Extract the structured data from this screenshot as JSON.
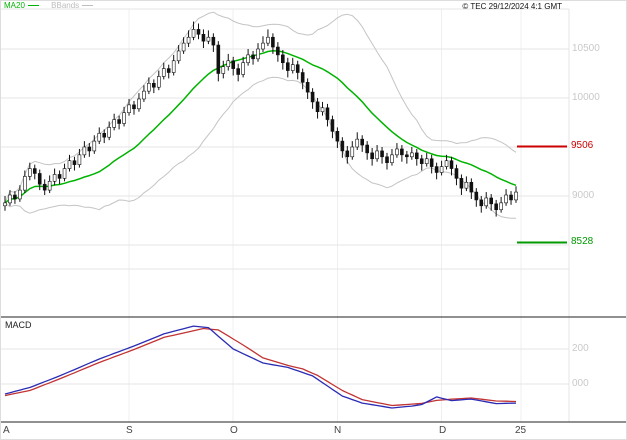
{
  "header": {
    "legend": [
      {
        "label": "MA20",
        "color": "#00b300"
      },
      {
        "label": "BBands",
        "color": "#bdbdbd"
      }
    ],
    "copyright": "© TEC 29/12/2024 4:1 GMT"
  },
  "chart_data": {
    "type": "candlestick",
    "title": "",
    "colors": {
      "candle": "#111111",
      "grid": "#e4e4e4",
      "axis": "#222222",
      "axis_label_gray": "#c9c9c9"
    },
    "y_axis": {
      "range": [
        8200,
        10900
      ],
      "ticks": [
        {
          "label": "10500",
          "value": 10500
        },
        {
          "label": "10000",
          "value": 10000
        },
        {
          "label": "9500",
          "value": 9500
        },
        {
          "label": "9000",
          "value": 9000
        },
        {
          "label": "8500",
          "value": 8500
        }
      ]
    },
    "x_axis": {
      "ticks": [
        {
          "label": "A",
          "i": 0,
          "grid": false
        },
        {
          "label": "S",
          "i": 25,
          "grid": true
        },
        {
          "label": "O",
          "i": 46,
          "grid": true
        },
        {
          "label": "N",
          "i": 67,
          "grid": true
        },
        {
          "label": "D",
          "i": 88,
          "grid": true
        },
        {
          "label": "25",
          "i": 104,
          "grid": true
        }
      ]
    },
    "levels": [
      {
        "label": "9506",
        "value": 9506,
        "color": "#cc0000"
      },
      {
        "label": "8528",
        "value": 8528,
        "color": "#009900"
      }
    ],
    "candles": [
      [
        8900,
        9000,
        8850,
        8930
      ],
      [
        8930,
        9060,
        8900,
        9010
      ],
      [
        9010,
        9050,
        8920,
        8970
      ],
      [
        8970,
        9110,
        8940,
        9060
      ],
      [
        9060,
        9260,
        9030,
        9200
      ],
      [
        9200,
        9340,
        9160,
        9280
      ],
      [
        9280,
        9320,
        9170,
        9230
      ],
      [
        9230,
        9270,
        9060,
        9120
      ],
      [
        9120,
        9170,
        9010,
        9060
      ],
      [
        9060,
        9210,
        9030,
        9150
      ],
      [
        9150,
        9280,
        9110,
        9220
      ],
      [
        9220,
        9260,
        9120,
        9180
      ],
      [
        9180,
        9330,
        9150,
        9280
      ],
      [
        9280,
        9420,
        9250,
        9360
      ],
      [
        9360,
        9400,
        9260,
        9320
      ],
      [
        9320,
        9480,
        9290,
        9420
      ],
      [
        9420,
        9560,
        9390,
        9500
      ],
      [
        9500,
        9540,
        9400,
        9460
      ],
      [
        9460,
        9620,
        9430,
        9560
      ],
      [
        9560,
        9700,
        9530,
        9640
      ],
      [
        9640,
        9680,
        9540,
        9600
      ],
      [
        9600,
        9760,
        9570,
        9700
      ],
      [
        9700,
        9840,
        9670,
        9780
      ],
      [
        9780,
        9820,
        9680,
        9740
      ],
      [
        9740,
        9910,
        9710,
        9850
      ],
      [
        9850,
        9990,
        9820,
        9930
      ],
      [
        9930,
        9970,
        9830,
        9890
      ],
      [
        9890,
        10050,
        9860,
        9990
      ],
      [
        9990,
        10130,
        9960,
        10070
      ],
      [
        10070,
        10210,
        10040,
        10150
      ],
      [
        10150,
        10190,
        10050,
        10110
      ],
      [
        10110,
        10280,
        10080,
        10220
      ],
      [
        10220,
        10360,
        10190,
        10300
      ],
      [
        10300,
        10340,
        10200,
        10260
      ],
      [
        10260,
        10440,
        10230,
        10380
      ],
      [
        10380,
        10540,
        10350,
        10480
      ],
      [
        10480,
        10620,
        10450,
        10560
      ],
      [
        10560,
        10690,
        10520,
        10620
      ],
      [
        10620,
        10780,
        10590,
        10700
      ],
      [
        10700,
        10760,
        10600,
        10650
      ],
      [
        10650,
        10700,
        10510,
        10580
      ],
      [
        10580,
        10690,
        10550,
        10620
      ],
      [
        10620,
        10660,
        10470,
        10540
      ],
      [
        10540,
        10580,
        10170,
        10250
      ],
      [
        10250,
        10380,
        10200,
        10320
      ],
      [
        10320,
        10450,
        10280,
        10380
      ],
      [
        10380,
        10420,
        10230,
        10300
      ],
      [
        10300,
        10350,
        10170,
        10240
      ],
      [
        10240,
        10420,
        10210,
        10360
      ],
      [
        10360,
        10500,
        10330,
        10440
      ],
      [
        10440,
        10480,
        10340,
        10400
      ],
      [
        10400,
        10560,
        10370,
        10500
      ],
      [
        10500,
        10630,
        10470,
        10560
      ],
      [
        10560,
        10700,
        10530,
        10620
      ],
      [
        10620,
        10660,
        10450,
        10520
      ],
      [
        10520,
        10570,
        10370,
        10440
      ],
      [
        10440,
        10490,
        10290,
        10360
      ],
      [
        10360,
        10410,
        10210,
        10280
      ],
      [
        10280,
        10410,
        10250,
        10340
      ],
      [
        10340,
        10380,
        10190,
        10260
      ],
      [
        10260,
        10300,
        10090,
        10160
      ],
      [
        10160,
        10200,
        9990,
        10060
      ],
      [
        10060,
        10100,
        9890,
        9960
      ],
      [
        9960,
        10000,
        9790,
        9860
      ],
      [
        9860,
        9960,
        9820,
        9900
      ],
      [
        9900,
        9940,
        9710,
        9780
      ],
      [
        9780,
        9820,
        9590,
        9660
      ],
      [
        9660,
        9700,
        9490,
        9560
      ],
      [
        9560,
        9600,
        9390,
        9460
      ],
      [
        9460,
        9510,
        9330,
        9400
      ],
      [
        9400,
        9560,
        9370,
        9500
      ],
      [
        9500,
        9650,
        9470,
        9580
      ],
      [
        9580,
        9620,
        9450,
        9520
      ],
      [
        9520,
        9560,
        9370,
        9440
      ],
      [
        9440,
        9490,
        9310,
        9380
      ],
      [
        9380,
        9520,
        9350,
        9460
      ],
      [
        9460,
        9500,
        9330,
        9400
      ],
      [
        9400,
        9440,
        9270,
        9340
      ],
      [
        9340,
        9480,
        9310,
        9420
      ],
      [
        9420,
        9540,
        9390,
        9480
      ],
      [
        9480,
        9520,
        9350,
        9420
      ],
      [
        9420,
        9460,
        9330,
        9400
      ],
      [
        9400,
        9500,
        9370,
        9440
      ],
      [
        9440,
        9480,
        9310,
        9380
      ],
      [
        9380,
        9420,
        9260,
        9330
      ],
      [
        9330,
        9440,
        9300,
        9380
      ],
      [
        9380,
        9420,
        9230,
        9300
      ],
      [
        9300,
        9340,
        9170,
        9240
      ],
      [
        9240,
        9360,
        9210,
        9300
      ],
      [
        9300,
        9420,
        9270,
        9360
      ],
      [
        9360,
        9400,
        9210,
        9280
      ],
      [
        9280,
        9320,
        9110,
        9180
      ],
      [
        9180,
        9220,
        9010,
        9080
      ],
      [
        9080,
        9200,
        9050,
        9140
      ],
      [
        9140,
        9180,
        8970,
        9040
      ],
      [
        9040,
        9080,
        8890,
        8960
      ],
      [
        8960,
        9000,
        8830,
        8900
      ],
      [
        8900,
        9040,
        8870,
        8980
      ],
      [
        8980,
        9020,
        8850,
        8920
      ],
      [
        8920,
        8960,
        8790,
        8860
      ],
      [
        8860,
        8990,
        8830,
        8930
      ],
      [
        8930,
        9070,
        8900,
        9010
      ],
      [
        9010,
        9050,
        8910,
        8960
      ],
      [
        8960,
        9100,
        8930,
        9040
      ]
    ],
    "indicators": {
      "ma20": {
        "period": 20,
        "color": "#00b300"
      },
      "bbands": {
        "period": 20,
        "mult": 2,
        "color": "#c4c4c4"
      },
      "macd": {
        "label": "MACD",
        "axis_ticks": [
          {
            "label": "200",
            "value": 200
          },
          {
            "label": "000",
            "value": 0
          }
        ],
        "line": {
          "color": "#2b2bb4",
          "points": [
            [
              0,
              -57
            ],
            [
              5,
              -20
            ],
            [
              11,
              46
            ],
            [
              19,
              143
            ],
            [
              26,
              217
            ],
            [
              32,
              286
            ],
            [
              38,
              331
            ],
            [
              41,
              322
            ],
            [
              46,
              200
            ],
            [
              52,
              120
            ],
            [
              57,
              95
            ],
            [
              62,
              46
            ],
            [
              68,
              -69
            ],
            [
              72,
              -109
            ],
            [
              78,
              -137
            ],
            [
              82,
              -126
            ],
            [
              84,
              -117
            ],
            [
              87,
              -74
            ],
            [
              90,
              -95
            ],
            [
              94,
              -86
            ],
            [
              99,
              -112
            ],
            [
              103,
              -109
            ]
          ]
        },
        "signal": {
          "color": "#c23333",
          "points": [
            [
              0,
              -66
            ],
            [
              5,
              -37
            ],
            [
              11,
              29
            ],
            [
              19,
              123
            ],
            [
              26,
              197
            ],
            [
              32,
              266
            ],
            [
              40,
              317
            ],
            [
              43,
              309
            ],
            [
              48,
              223
            ],
            [
              52,
              149
            ],
            [
              57,
              106
            ],
            [
              60,
              86
            ],
            [
              63,
              49
            ],
            [
              68,
              -37
            ],
            [
              72,
              -89
            ],
            [
              78,
              -123
            ],
            [
              84,
              -111
            ],
            [
              87,
              -94
            ],
            [
              90,
              -87
            ],
            [
              94,
              -80
            ],
            [
              99,
              -97
            ],
            [
              103,
              -100
            ]
          ]
        }
      }
    }
  }
}
